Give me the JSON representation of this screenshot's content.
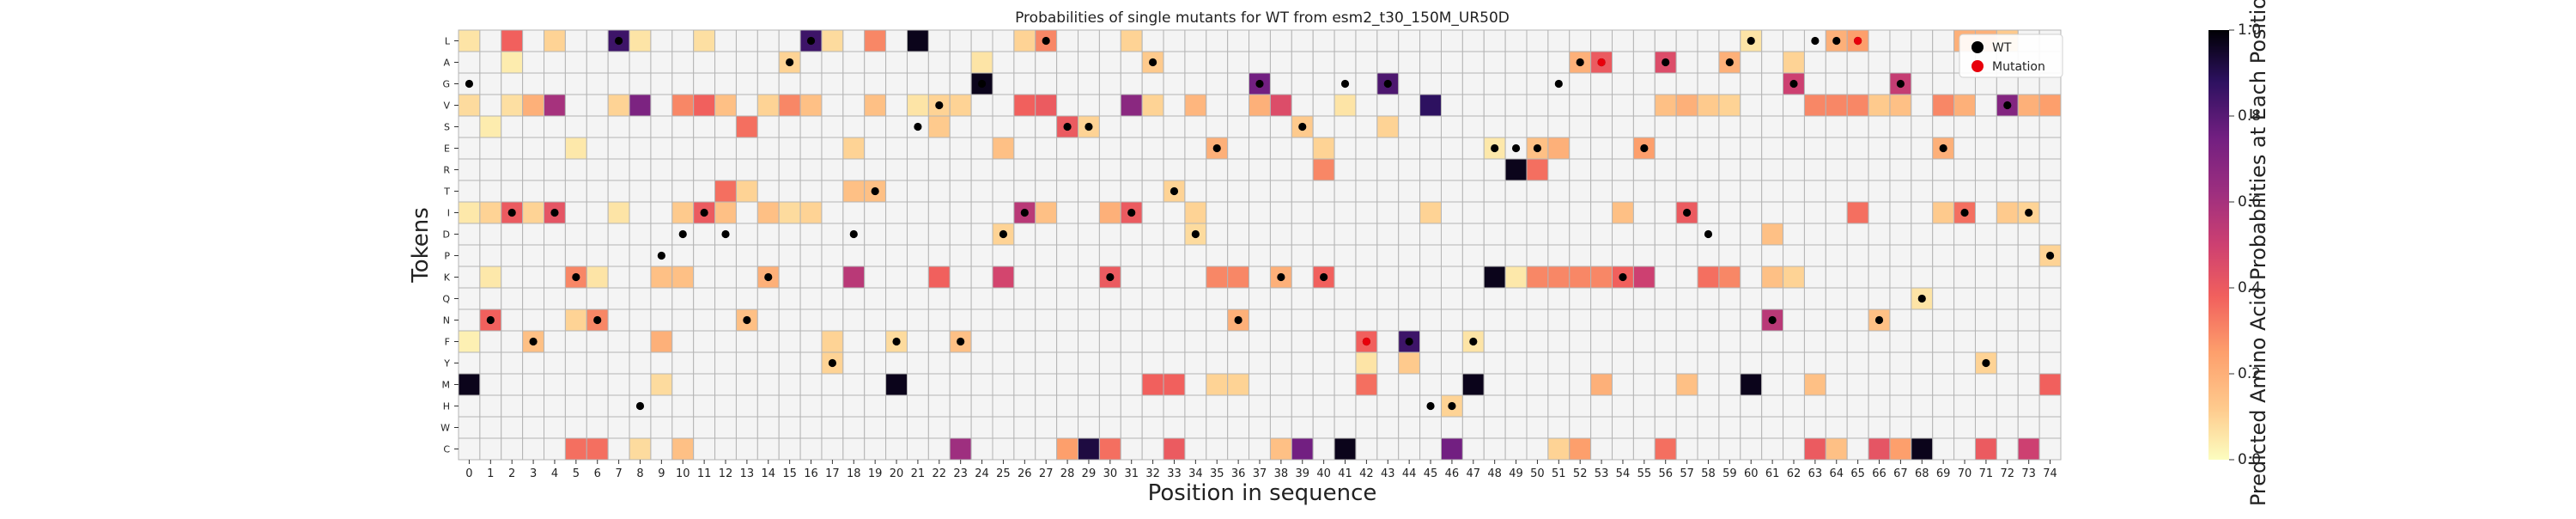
{
  "chart_data": {
    "type": "heatmap",
    "title": "Probabilities of single mutants for WT from esm2_t30_150M_UR50D",
    "xlabel": "Position in sequence",
    "ylabel": "Tokens",
    "colorbar_label": "Predicted Amino Acid Probabilities at Each Position",
    "colorbar_ticks": [
      "0.0",
      "0.2",
      "0.4",
      "0.6",
      "0.8",
      "1.0"
    ],
    "colormap": "magma_r",
    "vmin": 0,
    "vmax": 1,
    "tokens": [
      "L",
      "A",
      "G",
      "V",
      "S",
      "E",
      "R",
      "T",
      "I",
      "D",
      "P",
      "K",
      "Q",
      "N",
      "F",
      "Y",
      "M",
      "H",
      "W",
      "C"
    ],
    "positions": [
      0,
      1,
      2,
      3,
      4,
      5,
      6,
      7,
      8,
      9,
      10,
      11,
      12,
      13,
      14,
      15,
      16,
      17,
      18,
      19,
      20,
      21,
      22,
      23,
      24,
      25,
      26,
      27,
      28,
      29,
      30,
      31,
      32,
      33,
      34,
      35,
      36,
      37,
      38,
      39,
      40,
      41,
      42,
      43,
      44,
      45,
      46,
      47,
      48,
      49,
      50,
      51,
      52,
      53,
      54,
      55,
      56,
      57,
      58,
      59,
      60,
      61,
      62,
      63,
      64,
      65,
      66,
      67,
      68,
      69,
      70,
      71,
      72,
      73,
      74
    ],
    "legend": {
      "placement": "top-right",
      "entries": [
        {
          "label": "WT",
          "color": "#000000"
        },
        {
          "label": "Mutation",
          "color": "#e8000b"
        }
      ]
    },
    "wt_tokens": [
      "G",
      "N",
      "I",
      "F",
      "I",
      "K",
      "N",
      "L",
      "H",
      "P",
      "D",
      "I",
      "D",
      "N",
      "K",
      "A",
      "L",
      "Y",
      "D",
      "T",
      "F",
      "S",
      "V",
      "F",
      "G",
      "D",
      "I",
      "L",
      "S",
      "S",
      "K",
      "I",
      "A",
      "T",
      "D",
      "E",
      "N",
      "G",
      "K",
      "S",
      "K",
      "G",
      "F",
      "G",
      "F",
      "H",
      "H",
      "F",
      "E",
      "E",
      "E",
      "G",
      "A",
      "A",
      "K",
      "E",
      "A",
      "I",
      "D",
      "A",
      "L",
      "N",
      "G",
      "L",
      "L",
      "L",
      "N",
      "G",
      "Q",
      "E",
      "I",
      "Y",
      "V",
      "I",
      "P"
    ],
    "mutation_tokens": [
      null,
      null,
      null,
      null,
      null,
      null,
      null,
      null,
      null,
      null,
      null,
      null,
      null,
      null,
      null,
      null,
      null,
      null,
      null,
      null,
      null,
      null,
      null,
      null,
      null,
      null,
      null,
      null,
      null,
      null,
      null,
      null,
      null,
      null,
      null,
      null,
      null,
      null,
      null,
      null,
      null,
      null,
      "F",
      null,
      null,
      null,
      null,
      null,
      null,
      null,
      null,
      null,
      null,
      "A",
      null,
      null,
      null,
      null,
      null,
      null,
      null,
      null,
      null,
      null,
      null,
      "L",
      null,
      null,
      null,
      null,
      null,
      null,
      null,
      null,
      null
    ],
    "cell_values": {
      "0": {
        "M": 0.97,
        "L": 0.06,
        "V": 0.08,
        "I": 0.05,
        "F": 0.03
      },
      "1": {
        "N": 0.38,
        "I": 0.1,
        "K": 0.05,
        "S": 0.04
      },
      "2": {
        "L": 0.38,
        "I": 0.4,
        "V": 0.07,
        "A": 0.04
      },
      "3": {
        "F": 0.15,
        "V": 0.2,
        "I": 0.1
      },
      "4": {
        "V": 0.6,
        "I": 0.42,
        "L": 0.1
      },
      "5": {
        "K": 0.3,
        "C": 0.35,
        "N": 0.1,
        "E": 0.05
      },
      "6": {
        "N": 0.3,
        "C": 0.35,
        "K": 0.06
      },
      "7": {
        "L": 0.85,
        "V": 0.1,
        "I": 0.06
      },
      "8": {
        "V": 0.72,
        "L": 0.06,
        "C": 0.08
      },
      "9": {
        "F": 0.2,
        "K": 0.15,
        "M": 0.08
      },
      "10": {
        "V": 0.3,
        "I": 0.12,
        "K": 0.15,
        "C": 0.15
      },
      "11": {
        "V": 0.38,
        "I": 0.4,
        "L": 0.07
      },
      "12": {
        "T": 0.35,
        "I": 0.15,
        "V": 0.15
      },
      "13": {
        "S": 0.35,
        "N": 0.15,
        "T": 0.1
      },
      "14": {
        "K": 0.2,
        "I": 0.15,
        "V": 0.1
      },
      "15": {
        "V": 0.3,
        "A": 0.1,
        "I": 0.08
      },
      "16": {
        "L": 0.85,
        "V": 0.15,
        "I": 0.1
      },
      "17": {
        "Y": 0.1,
        "F": 0.1,
        "L": 0.08
      },
      "18": {
        "K": 0.55,
        "E": 0.1,
        "T": 0.15
      },
      "19": {
        "L": 0.3,
        "T": 0.15,
        "V": 0.15
      },
      "20": {
        "M": 0.97,
        "F": 0.08
      },
      "21": {
        "L": 0.97,
        "V": 0.06
      },
      "22": {
        "K": 0.38,
        "S": 0.12,
        "V": 0.1
      },
      "23": {
        "C": 0.62,
        "F": 0.15,
        "V": 0.1
      },
      "24": {
        "G": 0.97,
        "A": 0.06
      },
      "25": {
        "K": 0.48,
        "E": 0.15,
        "D": 0.1
      },
      "26": {
        "I": 0.55,
        "V": 0.38,
        "L": 0.1
      },
      "27": {
        "V": 0.4,
        "L": 0.3,
        "I": 0.15
      },
      "28": {
        "S": 0.4,
        "C": 0.25
      },
      "29": {
        "C": 0.92,
        "S": 0.1
      },
      "30": {
        "K": 0.4,
        "C": 0.35,
        "I": 0.2
      },
      "31": {
        "V": 0.68,
        "I": 0.4,
        "L": 0.1
      },
      "32": {
        "M": 0.38,
        "A": 0.12,
        "V": 0.1
      },
      "33": {
        "M": 0.38,
        "C": 0.4,
        "T": 0.1
      },
      "34": {
        "V": 0.18,
        "D": 0.08,
        "I": 0.1
      },
      "35": {
        "K": 0.3,
        "E": 0.2,
        "M": 0.1
      },
      "36": {
        "K": 0.3,
        "N": 0.2,
        "M": 0.1
      },
      "37": {
        "G": 0.75,
        "V": 0.2
      },
      "38": {
        "V": 0.45,
        "K": 0.2,
        "C": 0.15
      },
      "39": {
        "C": 0.75,
        "S": 0.12
      },
      "40": {
        "K": 0.38,
        "R": 0.3,
        "E": 0.1
      },
      "41": {
        "C": 0.97,
        "V": 0.06
      },
      "42": {
        "F": 0.38,
        "M": 0.35,
        "Y": 0.06
      },
      "43": {
        "G": 0.82,
        "S": 0.1
      },
      "44": {
        "F": 0.85,
        "Y": 0.12
      },
      "45": {
        "V": 0.88,
        "I": 0.1
      },
      "46": {
        "C": 0.75,
        "H": 0.1
      },
      "47": {
        "M": 0.97,
        "F": 0.06
      },
      "48": {
        "K": 0.97,
        "E": 0.05
      },
      "49": {
        "R": 0.97,
        "K": 0.05
      },
      "50": {
        "R": 0.35,
        "K": 0.3,
        "E": 0.15
      },
      "51": {
        "K": 0.3,
        "E": 0.2,
        "C": 0.1
      },
      "52": {
        "K": 0.3,
        "A": 0.2,
        "C": 0.25
      },
      "53": {
        "A": 0.4,
        "K": 0.3,
        "M": 0.2
      },
      "54": {
        "K": 0.38,
        "I": 0.15
      },
      "55": {
        "K": 0.5,
        "E": 0.25
      },
      "56": {
        "A": 0.45,
        "C": 0.35,
        "V": 0.15
      },
      "57": {
        "I": 0.4,
        "V": 0.2,
        "M": 0.15
      },
      "58": {
        "K": 0.35,
        "V": 0.12
      },
      "59": {
        "K": 0.3,
        "A": 0.2,
        "V": 0.1
      },
      "60": {
        "M": 0.97,
        "L": 0.06
      },
      "61": {
        "N": 0.55,
        "K": 0.15,
        "D": 0.15
      },
      "62": {
        "G": 0.5,
        "K": 0.1,
        "A": 0.1
      },
      "63": {
        "C": 0.4,
        "V": 0.3,
        "M": 0.15
      },
      "64": {
        "V": 0.3,
        "L": 0.2,
        "C": 0.15
      },
      "65": {
        "L": 0.25,
        "I": 0.35,
        "V": 0.3
      },
      "66": {
        "C": 0.42,
        "N": 0.15,
        "V": 0.12
      },
      "67": {
        "G": 0.52,
        "C": 0.25,
        "V": 0.15
      },
      "68": {
        "C": 0.97,
        "Q": 0.06
      },
      "69": {
        "V": 0.3,
        "E": 0.2,
        "I": 0.12
      },
      "70": {
        "I": 0.35,
        "V": 0.2,
        "L": 0.2
      },
      "71": {
        "C": 0.4,
        "L": 0.2,
        "Y": 0.1
      },
      "72": {
        "V": 0.7,
        "I": 0.12,
        "L": 0.12
      },
      "73": {
        "C": 0.5,
        "V": 0.2,
        "I": 0.1
      },
      "74": {
        "M": 0.38,
        "V": 0.25,
        "P": 0.1
      }
    }
  }
}
